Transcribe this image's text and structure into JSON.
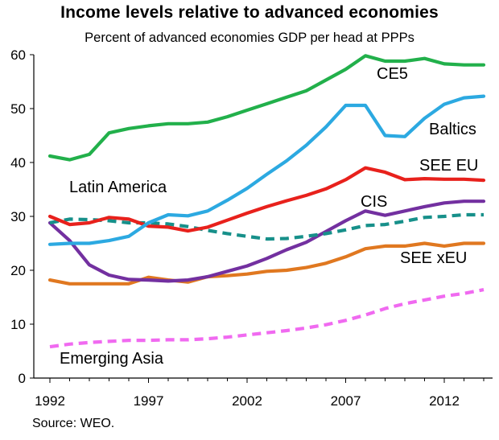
{
  "title": "Income levels relative to advanced economies",
  "subtitle": "Percent of advanced economies  GDP per head at PPPs",
  "source": "Source: WEO.",
  "chart_data": {
    "type": "line",
    "title": "Income levels relative to advanced economies",
    "subtitle": "Percent of advanced economies  GDP per head at PPPs",
    "xlabel": "",
    "ylabel": "",
    "xlim": [
      1992,
      2014
    ],
    "ylim": [
      0,
      60
    ],
    "x_ticks": [
      1992,
      1997,
      2002,
      2007,
      2012
    ],
    "y_ticks": [
      0,
      10,
      20,
      30,
      40,
      50,
      60
    ],
    "grid": false,
    "legend": "inline labels",
    "x": [
      1992,
      1993,
      1994,
      1995,
      1996,
      1997,
      1998,
      1999,
      2000,
      2001,
      2002,
      2003,
      2004,
      2005,
      2006,
      2007,
      2008,
      2009,
      2010,
      2011,
      2012,
      2013,
      2014
    ],
    "series": [
      {
        "name": "CE5",
        "color": "#22b04b",
        "dashed": false,
        "values": [
          41.2,
          40.5,
          41.5,
          45.5,
          46.3,
          46.8,
          47.2,
          47.2,
          47.5,
          48.5,
          49.7,
          50.9,
          52.1,
          53.3,
          55.3,
          57.3,
          59.8,
          58.8,
          58.8,
          59.3,
          58.3,
          58.1,
          58.1
        ]
      },
      {
        "name": "Baltics",
        "color": "#2ca9e1",
        "dashed": false,
        "values": [
          24.8,
          25.0,
          25.0,
          25.5,
          26.3,
          28.8,
          30.3,
          30.1,
          31.0,
          33.0,
          35.2,
          37.8,
          40.3,
          43.2,
          46.6,
          50.6,
          50.6,
          45.0,
          44.8,
          48.2,
          50.8,
          52.0,
          52.3
        ]
      },
      {
        "name": "SEE EU",
        "color": "#e8211c",
        "dashed": false,
        "values": [
          30.0,
          28.5,
          28.8,
          29.8,
          29.5,
          28.2,
          28.0,
          27.3,
          28.0,
          29.3,
          30.6,
          31.8,
          32.9,
          33.9,
          35.1,
          36.8,
          39.0,
          38.2,
          36.8,
          37.0,
          36.9,
          36.9,
          36.7
        ]
      },
      {
        "name": "Latin America",
        "color": "#17908a",
        "dashed": true,
        "values": [
          28.8,
          29.5,
          29.4,
          29.2,
          28.8,
          28.8,
          28.6,
          28.1,
          27.4,
          26.8,
          26.3,
          25.8,
          25.9,
          26.3,
          26.8,
          27.5,
          28.3,
          28.5,
          29.1,
          29.8,
          30.0,
          30.3,
          30.3
        ]
      },
      {
        "name": "CIS",
        "color": "#7330a0",
        "dashed": false,
        "values": [
          28.8,
          25.5,
          21.0,
          19.1,
          18.3,
          18.2,
          18.0,
          18.2,
          18.8,
          19.8,
          20.8,
          22.2,
          23.8,
          25.2,
          27.2,
          29.2,
          31.0,
          30.2,
          31.0,
          31.8,
          32.5,
          32.8,
          32.8
        ]
      },
      {
        "name": "SEE xEU",
        "color": "#e07820",
        "dashed": false,
        "values": [
          18.2,
          17.5,
          17.5,
          17.5,
          17.5,
          18.7,
          18.2,
          17.8,
          18.8,
          19.0,
          19.3,
          19.8,
          20.0,
          20.5,
          21.3,
          22.5,
          24.0,
          24.5,
          24.5,
          25.0,
          24.5,
          25.0,
          25.0
        ]
      },
      {
        "name": "Emerging Asia",
        "color": "#f06af0",
        "dashed": true,
        "values": [
          5.8,
          6.3,
          6.6,
          6.8,
          7.0,
          7.0,
          7.1,
          7.1,
          7.3,
          7.6,
          8.0,
          8.4,
          8.8,
          9.3,
          9.9,
          10.7,
          11.7,
          12.9,
          13.8,
          14.5,
          15.2,
          15.7,
          16.4
        ]
      }
    ]
  }
}
